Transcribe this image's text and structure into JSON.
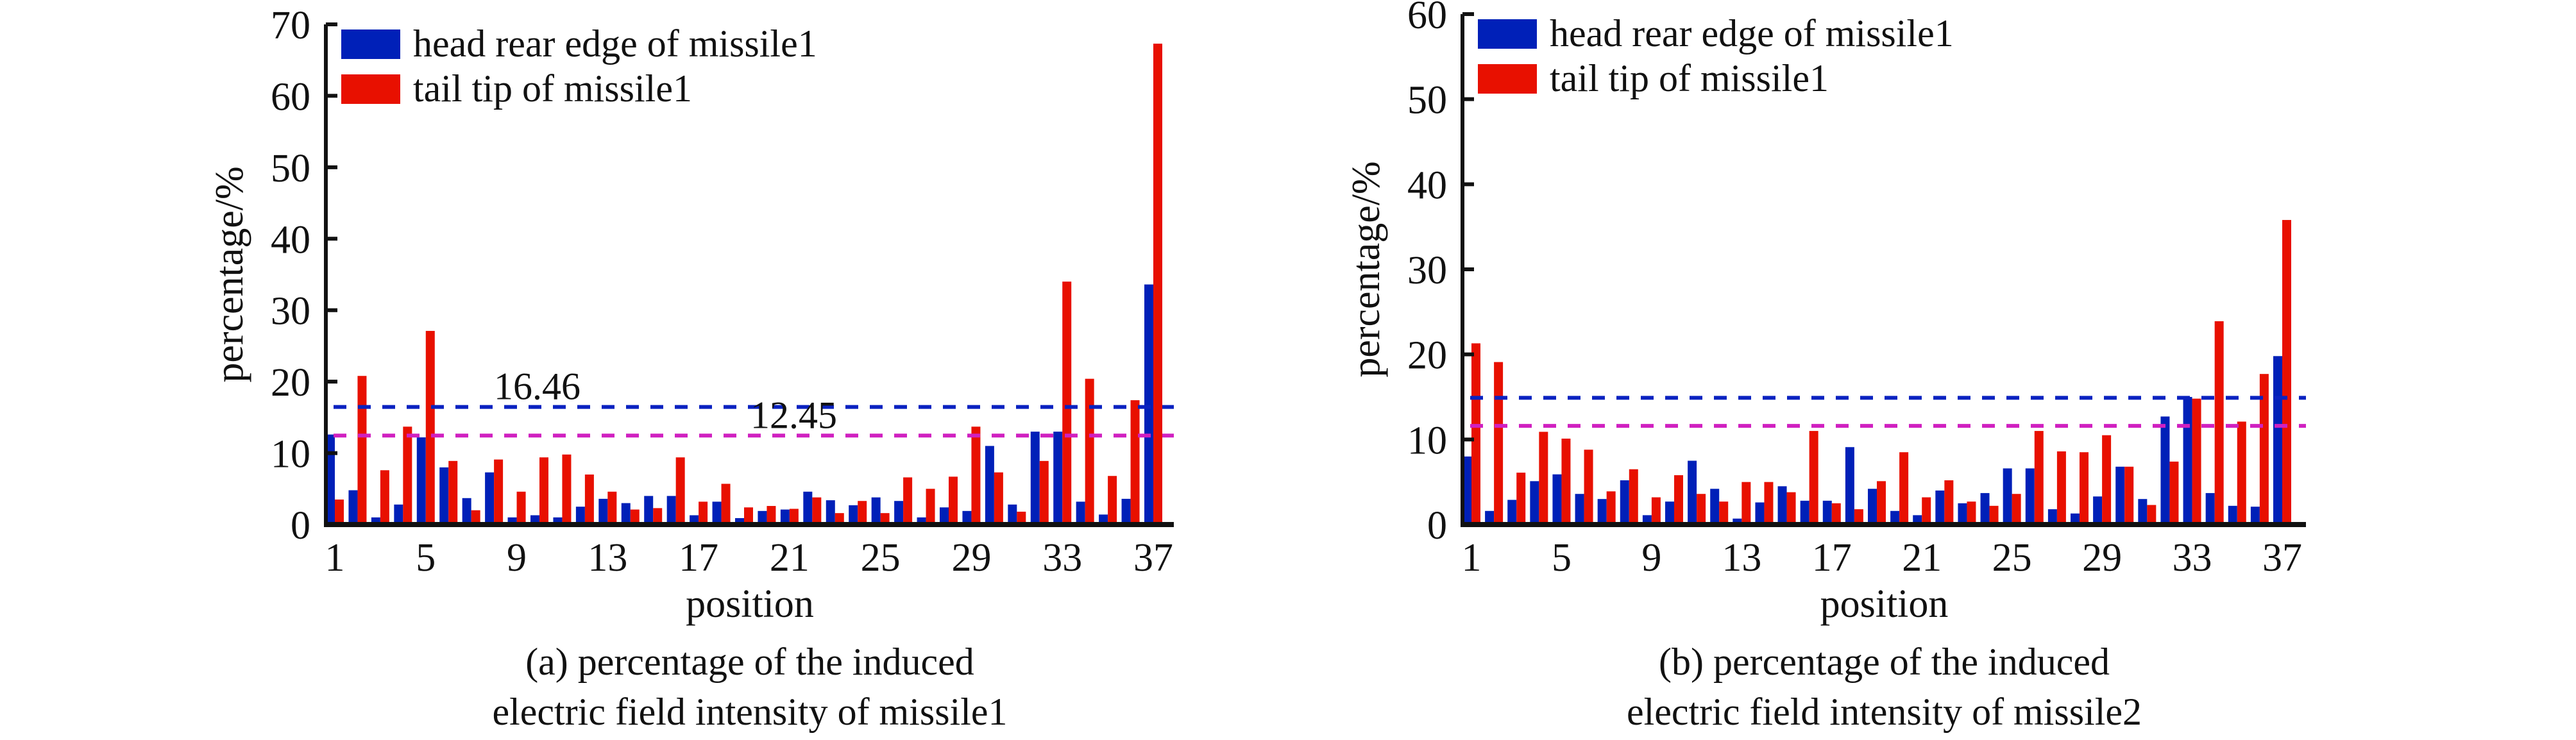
{
  "colors": {
    "head": "#0020b8",
    "tail": "#e81000",
    "mean_head_line": "#0a22c0",
    "mean_tail_line": "#d020c0",
    "axis": "#111111"
  },
  "chart_data": [
    {
      "id": "a",
      "type": "bar",
      "title": "",
      "caption_line1": "(a) percentage of the induced",
      "caption_line2": "electric field intensity of missile1",
      "xlabel": "position",
      "ylabel": "percentage/%",
      "ylim": [
        0,
        70
      ],
      "yticks": [
        0,
        10,
        20,
        30,
        40,
        50,
        60,
        70
      ],
      "xlim": [
        1,
        37
      ],
      "xticks": [
        1,
        5,
        9,
        13,
        17,
        21,
        25,
        29,
        33,
        37
      ],
      "grid": false,
      "legend_position": "top-left",
      "categories": [
        1,
        2,
        3,
        4,
        5,
        6,
        7,
        8,
        9,
        10,
        11,
        12,
        13,
        14,
        15,
        16,
        17,
        18,
        19,
        20,
        21,
        22,
        23,
        24,
        25,
        26,
        27,
        28,
        29,
        30,
        31,
        32,
        33,
        34,
        35,
        36,
        37
      ],
      "series": [
        {
          "name": "head rear edge of missile1",
          "color_key": "head",
          "values": [
            12.6,
            4.8,
            1.0,
            2.8,
            12.2,
            8.0,
            3.7,
            7.3,
            1.0,
            1.3,
            1.0,
            2.5,
            3.6,
            3.0,
            4.0,
            4.0,
            1.3,
            3.2,
            0.9,
            1.9,
            2.1,
            4.6,
            3.4,
            2.7,
            3.8,
            3.3,
            1.0,
            2.4,
            1.9,
            11.0,
            2.8,
            13.0,
            13.0,
            3.2,
            1.4,
            3.6,
            33.6
          ]
        },
        {
          "name": "tail tip of missile1",
          "color_key": "tail",
          "values": [
            3.5,
            20.8,
            7.6,
            13.7,
            27.1,
            8.9,
            2.0,
            9.1,
            4.6,
            9.4,
            9.8,
            7.0,
            4.6,
            2.1,
            2.3,
            9.4,
            3.2,
            5.7,
            2.4,
            2.6,
            2.2,
            3.8,
            1.6,
            3.3,
            1.6,
            6.6,
            5.0,
            6.7,
            13.7,
            7.3,
            1.8,
            8.9,
            34.0,
            20.4,
            6.8,
            17.4,
            67.3
          ]
        }
      ],
      "reference_lines": [
        {
          "value": 16.46,
          "label": "16.46",
          "color_key": "mean_head_line"
        },
        {
          "value": 12.45,
          "label": "12.45",
          "color_key": "mean_tail_line"
        }
      ]
    },
    {
      "id": "b",
      "type": "bar",
      "title": "",
      "caption_line1": "(b) percentage of the induced",
      "caption_line2": "electric field intensity of missile2",
      "xlabel": "position",
      "ylabel": "percentage/%",
      "ylim": [
        0,
        60
      ],
      "yticks": [
        0,
        10,
        20,
        30,
        40,
        50,
        60
      ],
      "xlim": [
        1,
        37
      ],
      "xticks": [
        1,
        5,
        9,
        13,
        17,
        21,
        25,
        29,
        33,
        37
      ],
      "grid": false,
      "legend_position": "top-left",
      "categories": [
        1,
        2,
        3,
        4,
        5,
        6,
        7,
        8,
        9,
        10,
        11,
        12,
        13,
        14,
        15,
        16,
        17,
        18,
        19,
        20,
        21,
        22,
        23,
        24,
        25,
        26,
        27,
        28,
        29,
        30,
        31,
        32,
        33,
        34,
        35,
        36,
        37
      ],
      "series": [
        {
          "name": "head rear edge of missile1",
          "color_key": "head",
          "values": [
            8.0,
            1.6,
            2.9,
            5.1,
            5.9,
            3.6,
            3.0,
            5.2,
            1.1,
            2.7,
            7.5,
            4.2,
            0.7,
            2.6,
            4.5,
            2.8,
            2.8,
            9.1,
            4.2,
            1.6,
            1.1,
            4.0,
            2.5,
            3.7,
            6.6,
            6.6,
            1.8,
            1.3,
            3.3,
            6.8,
            3.0,
            12.7,
            15.0,
            3.7,
            2.2,
            2.1,
            19.8
          ]
        },
        {
          "name": "tail tip of missile1",
          "color_key": "tail",
          "values": [
            21.3,
            19.1,
            6.1,
            10.9,
            10.1,
            8.8,
            3.9,
            6.5,
            3.2,
            5.8,
            3.6,
            2.7,
            5.0,
            5.0,
            3.8,
            11.0,
            2.5,
            1.8,
            5.1,
            8.5,
            3.2,
            5.2,
            2.7,
            2.2,
            3.6,
            11.0,
            8.6,
            8.5,
            10.5,
            6.8,
            2.3,
            7.4,
            14.8,
            23.9,
            12.1,
            17.7,
            35.8
          ]
        }
      ],
      "reference_lines": [
        {
          "value": 14.9,
          "label": "",
          "color_key": "mean_head_line"
        },
        {
          "value": 11.6,
          "label": "",
          "color_key": "mean_tail_line"
        }
      ]
    }
  ]
}
